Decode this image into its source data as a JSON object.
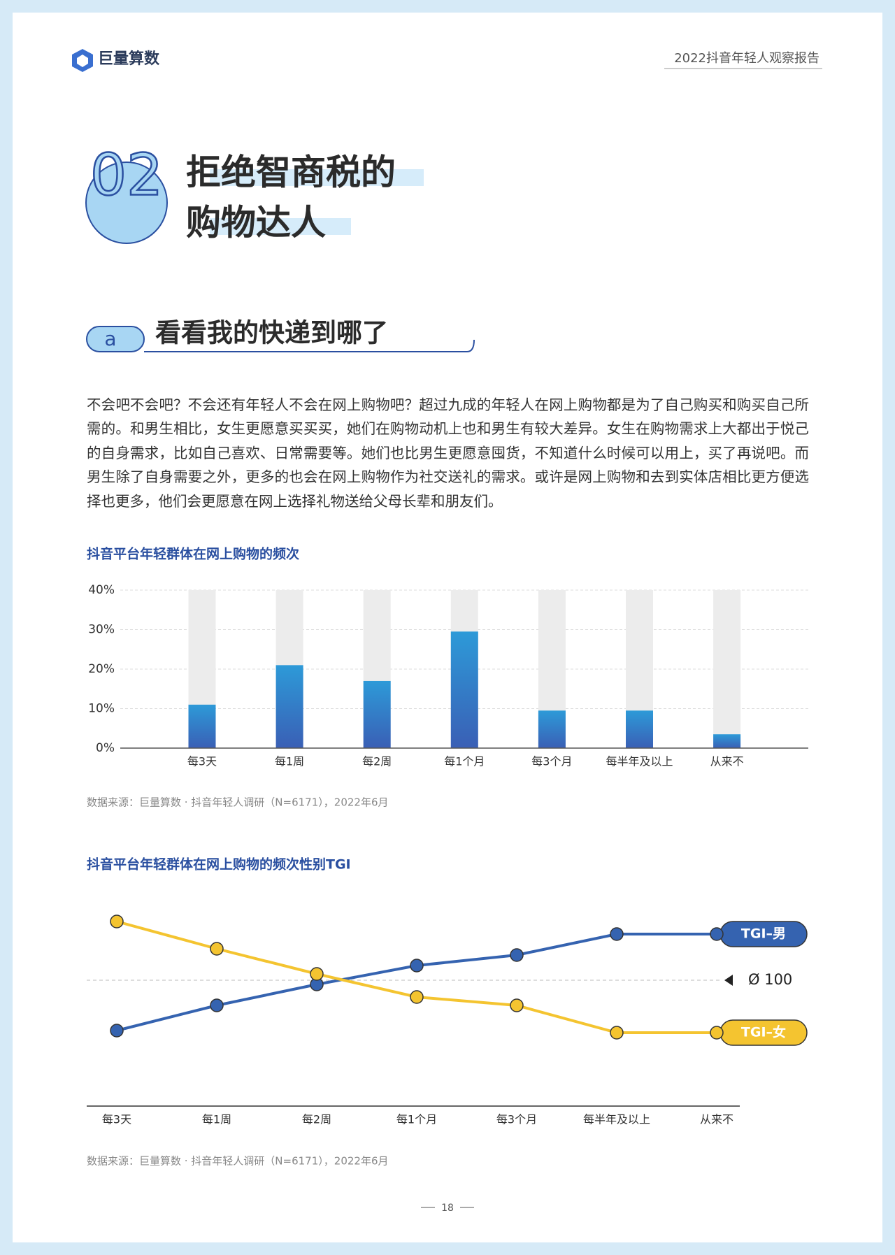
{
  "header": {
    "brand": "巨量算数",
    "report": "2022抖音年轻人观察报告"
  },
  "section": {
    "number": "02",
    "title_lines": [
      "拒绝智商税的",
      "购物达人"
    ]
  },
  "subsection": {
    "letter": "a",
    "title": "看看我的快递到哪了"
  },
  "body": "不会吧不会吧？不会还有年轻人不会在网上购物吧？超过九成的年轻人在网上购物都是为了自己购买和购买自己所需的。和男生相比，女生更愿意买买买，她们在购物动机上也和男生有较大差异。女生在购物需求上大都出于悦己的自身需求，比如自己喜欢、日常需要等。她们也比男生更愿意囤货，不知道什么时候可以用上，买了再说吧。而男生除了自身需要之外，更多的也会在网上购物作为社交送礼的需求。或许是网上购物和去到实体店相比更方便选择也更多，他们会更愿意在网上选择礼物送给父母长辈和朋友们。",
  "chart_data": [
    {
      "type": "bar",
      "title": "抖音平台年轻群体在网上购物的频次",
      "categories": [
        "每3天",
        "每1周",
        "每2周",
        "每1个月",
        "每3个月",
        "每半年及以上",
        "从来不"
      ],
      "values": [
        11,
        21,
        17,
        29.5,
        9.5,
        9.5,
        3.5
      ],
      "color": "#2f7fd0",
      "ylim": [
        0,
        40
      ],
      "yticks": [
        {
          "value": 0,
          "label": "0%"
        },
        {
          "value": 10,
          "label": "10%"
        },
        {
          "value": 20,
          "label": "20%"
        },
        {
          "value": 30,
          "label": "30%"
        },
        {
          "value": 40,
          "label": "40%"
        }
      ],
      "grid": true,
      "source": "数据来源：巨量算数 · 抖音年轻人调研（N=6171），2022年6月"
    },
    {
      "type": "line",
      "title": "抖音平台年轻群体在网上购物的频次性别TGI",
      "categories": [
        "每3天",
        "每1周",
        "每2周",
        "每1个月",
        "每3个月",
        "每半年及以上",
        "从来不"
      ],
      "series": [
        {
          "name": "TGI–男",
          "color": "#3563b0",
          "values": [
            76,
            88,
            98,
            107,
            112,
            122,
            122
          ]
        },
        {
          "name": "TGI–女",
          "color": "#f4c430",
          "values": [
            128,
            115,
            103,
            92,
            88,
            75,
            75
          ]
        }
      ],
      "ylim": [
        40,
        140
      ],
      "reference": {
        "value": 100,
        "label": "Ø 100"
      },
      "source": "数据来源：巨量算数 · 抖音年轻人调研（N=6171），2022年6月"
    }
  ],
  "page_number": "18"
}
